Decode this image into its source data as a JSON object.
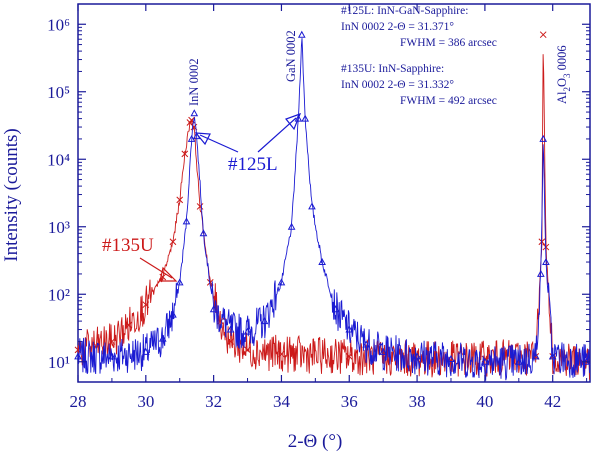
{
  "chart_data": {
    "type": "line",
    "xlabel": "2-Θ (°)",
    "ylabel": "Intensity (counts)",
    "x_ticks": [
      "28",
      "30",
      "32",
      "34",
      "36",
      "38",
      "40",
      "42"
    ],
    "y_ticks": [
      "10¹",
      "10²",
      "10³",
      "10⁴",
      "10⁵",
      "10⁶"
    ],
    "xlim": [
      28,
      43.1
    ],
    "ylim_log10": [
      0.7,
      6.3
    ],
    "log_y": true,
    "colors": {
      "series_125L": "#1a1ad2",
      "series_135U": "#cc1a1a",
      "axis": "#1a1a9a"
    },
    "series": [
      {
        "name": "#125L",
        "color": "#1a1ad2",
        "x": [
          28.0,
          29.0,
          30.0,
          30.5,
          30.8,
          31.0,
          31.2,
          31.35,
          31.43,
          31.5,
          31.7,
          32.0,
          32.5,
          33.0,
          33.5,
          34.0,
          34.3,
          34.5,
          34.6,
          34.7,
          34.9,
          35.2,
          35.6,
          36.0,
          36.5,
          37.0,
          38.0,
          39.0,
          40.0,
          41.0,
          41.5,
          41.65,
          41.72,
          41.8,
          42.0,
          43.0
        ],
        "y": [
          12,
          12,
          14,
          22,
          50,
          150,
          1200,
          20000,
          48000,
          22000,
          800,
          60,
          30,
          28,
          40,
          150,
          1000,
          40000,
          700000,
          40000,
          2000,
          300,
          60,
          30,
          18,
          14,
          12,
          11,
          10,
          10,
          12,
          200,
          20000,
          300,
          12,
          10
        ]
      },
      {
        "name": "#135U",
        "color": "#cc1a1a",
        "x": [
          28.0,
          29.0,
          29.5,
          30.0,
          30.5,
          30.8,
          31.0,
          31.15,
          31.3,
          31.35,
          31.42,
          31.6,
          31.9,
          32.2,
          32.5,
          33.0,
          34.0,
          36.0,
          38.0,
          40.0,
          41.5,
          41.68,
          41.72,
          41.8,
          42.0,
          43.0
        ],
        "y": [
          15,
          20,
          35,
          70,
          180,
          600,
          2500,
          12000,
          35000,
          38000,
          30000,
          2000,
          150,
          40,
          20,
          15,
          13,
          12,
          11,
          11,
          12,
          600,
          700000,
          500,
          12,
          10
        ]
      }
    ],
    "annotations": {
      "peak_labels": [
        "InN  0002",
        "GaN  0002"
      ],
      "al2o3_label": [
        "Al",
        "2",
        "O",
        "3",
        "  0006"
      ],
      "callouts": [
        "#125L",
        "#135U"
      ],
      "info_lines": [
        "#125L: InN-GaN-Sapphire:",
        "InN 0002   2-Θ  = 31.371°",
        "FWHM = 386 arcsec",
        "#135U: InN-Sapphire:",
        "InN 0002   2-Θ  = 31.332°",
        "FWHM = 492 arcsec"
      ]
    },
    "grid": false,
    "legend": "none"
  }
}
